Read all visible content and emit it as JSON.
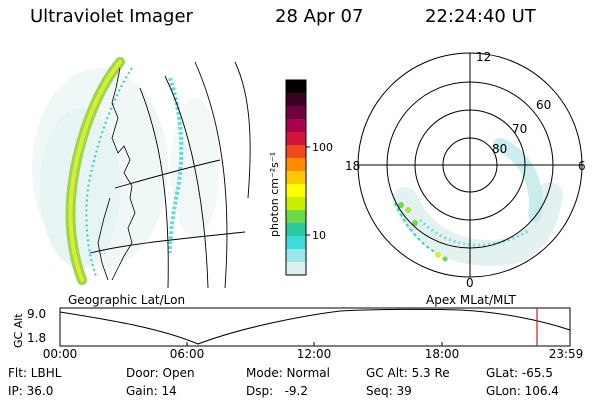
{
  "header": {
    "title": "Ultraviolet Imager",
    "date": "28 Apr 07",
    "time": "22:24:40 UT"
  },
  "colorbar": {
    "label": "photon cm⁻²s⁻¹",
    "ticks": [
      "100",
      "10"
    ],
    "colors": [
      "#000000",
      "#3a0024",
      "#700040",
      "#a8004c",
      "#d0143c",
      "#f04a1c",
      "#ff8c00",
      "#ffc800",
      "#ffff00",
      "#c8f000",
      "#6ed84a",
      "#2cc8a0",
      "#3cdcdc",
      "#9ae6ea",
      "#dcf0f0"
    ]
  },
  "map_panel": {
    "label": "Geographic Lat/Lon"
  },
  "polar_panel": {
    "label": "Apex MLat/MLT",
    "mlt_labels": [
      "12",
      "18",
      "6",
      "0"
    ],
    "lat_labels": [
      "60",
      "70",
      "80"
    ]
  },
  "timeline": {
    "axis_label": "GC Alt",
    "y_top": "9.0",
    "y_bottom": "1.8",
    "x_ticks": [
      "00:00",
      "06:00",
      "12:00",
      "18:00",
      "23:59"
    ],
    "marker_color": "#d01818"
  },
  "status": {
    "flt": "Flt: LBHL",
    "ip": "IP: 36.0",
    "door": "Door: Open",
    "gain": "Gain: 14",
    "mode": "Mode: Normal",
    "dsp": "Dsp:   -9.2",
    "gc_alt": "GC Alt: 5.3 Re",
    "seq": "Seq: 39",
    "glat": "GLat: -65.5",
    "glon": "GLon: 106.4"
  }
}
